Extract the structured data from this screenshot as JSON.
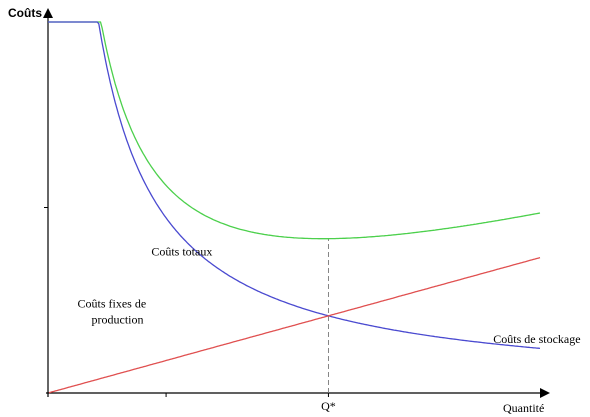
{
  "chart_data": {
    "type": "line",
    "ylabel": "Coûts",
    "xlabel": "Quantité",
    "xlim": [
      0,
      10
    ],
    "ylim": [
      0,
      10
    ],
    "grid": false,
    "legend": "none",
    "x_tick_labels": [
      {
        "x": 5.7,
        "label": "Q*"
      }
    ],
    "y_ticks": [
      5
    ],
    "series": [
      {
        "name": "Coûts totaux",
        "color": "#4cd04c",
        "formula": "total",
        "label_lines": [
          "Coûts totaux"
        ],
        "label_at": {
          "x": 2.1,
          "y": 3.7
        },
        "label_anchor": "start"
      },
      {
        "name": "Coûts fixes de production",
        "color": "#4a4ad0",
        "formula": "fixed",
        "label_lines": [
          "Coûts fixes de",
          "production"
        ],
        "label_at": {
          "x": 0.6,
          "y": 2.3
        },
        "label_anchor": "start"
      },
      {
        "name": "Coûts de stockage",
        "color": "#e05050",
        "formula": "storage",
        "label_lines": [
          "Coûts de stockage"
        ],
        "label_at": {
          "x": 9.05,
          "y": 1.35
        },
        "label_anchor": "start"
      }
    ],
    "optimum": {
      "x": 5.7,
      "label": "Q*",
      "dashed": true,
      "color": "#777777"
    }
  }
}
